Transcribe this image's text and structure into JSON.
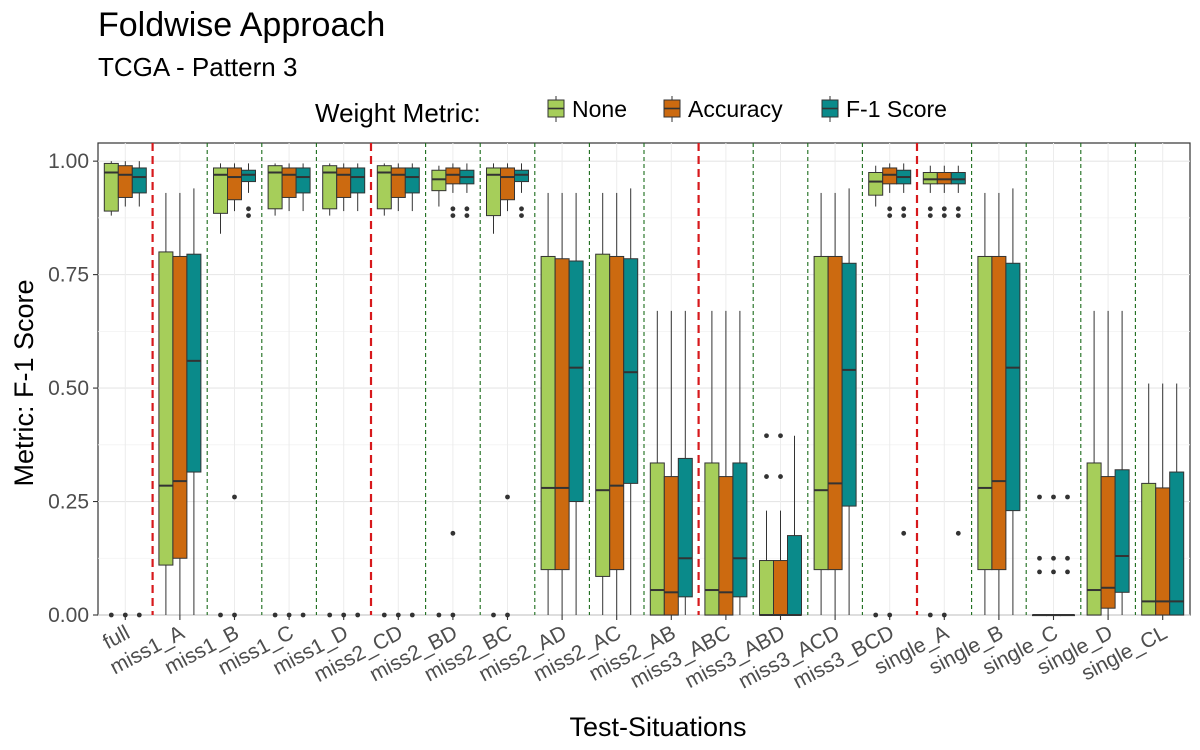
{
  "chart_data": {
    "type": "box",
    "title": "Foldwise Approach",
    "subtitle": "TCGA - Pattern 3",
    "xlabel": "Test-Situations",
    "ylabel": "Metric: F-1 Score",
    "ylim": [
      0,
      1.04
    ],
    "yticks": [
      "0.00",
      "0.25",
      "0.50",
      "0.75",
      "1.00"
    ],
    "ytick_values": [
      0,
      0.25,
      0.5,
      0.75,
      1.0
    ],
    "grid": true,
    "legend": {
      "title": "Weight Metric:",
      "position": "top",
      "entries": [
        "None",
        "Accuracy",
        "F-1 Score"
      ]
    },
    "series_colors": [
      "#a6ce5a",
      "#cc6a10",
      "#0a8a8a"
    ],
    "categories": [
      "full",
      "miss1_A",
      "miss1_B",
      "miss1_C",
      "miss1_D",
      "miss2_CD",
      "miss2_BD",
      "miss2_BC",
      "miss2_AD",
      "miss2_AC",
      "miss2_AB",
      "miss3_ABC",
      "miss3_ABD",
      "miss3_ACD",
      "miss3_BCD",
      "single_A",
      "single_B",
      "single_C",
      "single_D",
      "single_CL"
    ],
    "separators": [
      {
        "after": 0,
        "style": "red"
      },
      {
        "after": 1,
        "style": "green"
      },
      {
        "after": 2,
        "style": "green"
      },
      {
        "after": 3,
        "style": "green"
      },
      {
        "after": 4,
        "style": "red"
      },
      {
        "after": 5,
        "style": "green"
      },
      {
        "after": 6,
        "style": "green"
      },
      {
        "after": 7,
        "style": "green"
      },
      {
        "after": 8,
        "style": "green"
      },
      {
        "after": 9,
        "style": "green"
      },
      {
        "after": 10,
        "style": "red"
      },
      {
        "after": 11,
        "style": "green"
      },
      {
        "after": 12,
        "style": "green"
      },
      {
        "after": 13,
        "style": "green"
      },
      {
        "after": 14,
        "style": "red"
      },
      {
        "after": 15,
        "style": "green"
      },
      {
        "after": 16,
        "style": "green"
      },
      {
        "after": 17,
        "style": "green"
      },
      {
        "after": 18,
        "style": "green"
      }
    ],
    "boxes": [
      [
        {
          "lo": 0.88,
          "q1": 0.89,
          "med": 0.975,
          "q3": 0.995,
          "hi": 1.0,
          "out": [
            0.0
          ]
        },
        {
          "lo": 0.9,
          "q1": 0.92,
          "med": 0.97,
          "q3": 0.99,
          "hi": 1.0,
          "out": [
            0.0
          ]
        },
        {
          "lo": 0.9,
          "q1": 0.93,
          "med": 0.965,
          "q3": 0.985,
          "hi": 1.0,
          "out": [
            0.0
          ]
        }
      ],
      [
        {
          "lo": 0.0,
          "q1": 0.11,
          "med": 0.285,
          "q3": 0.8,
          "hi": 0.93,
          "out": []
        },
        {
          "lo": 0.0,
          "q1": 0.125,
          "med": 0.295,
          "q3": 0.79,
          "hi": 0.93,
          "out": []
        },
        {
          "lo": 0.0,
          "q1": 0.315,
          "med": 0.56,
          "q3": 0.795,
          "hi": 0.94,
          "out": []
        }
      ],
      [
        {
          "lo": 0.84,
          "q1": 0.885,
          "med": 0.97,
          "q3": 0.985,
          "hi": 0.995,
          "out": [
            0.0
          ]
        },
        {
          "lo": 0.89,
          "q1": 0.915,
          "med": 0.965,
          "q3": 0.985,
          "hi": 0.995,
          "out": [
            0.0,
            0.26
          ]
        },
        {
          "lo": 0.93,
          "q1": 0.955,
          "med": 0.97,
          "q3": 0.98,
          "hi": 0.995,
          "out": [
            0.88,
            0.895
          ]
        }
      ],
      [
        {
          "lo": 0.88,
          "q1": 0.895,
          "med": 0.975,
          "q3": 0.99,
          "hi": 0.995,
          "out": [
            0.0
          ]
        },
        {
          "lo": 0.89,
          "q1": 0.92,
          "med": 0.97,
          "q3": 0.985,
          "hi": 0.995,
          "out": [
            0.0
          ]
        },
        {
          "lo": 0.89,
          "q1": 0.93,
          "med": 0.965,
          "q3": 0.985,
          "hi": 0.995,
          "out": [
            0.0
          ]
        }
      ],
      [
        {
          "lo": 0.88,
          "q1": 0.895,
          "med": 0.975,
          "q3": 0.99,
          "hi": 0.995,
          "out": [
            0.0
          ]
        },
        {
          "lo": 0.89,
          "q1": 0.92,
          "med": 0.97,
          "q3": 0.985,
          "hi": 0.995,
          "out": [
            0.0
          ]
        },
        {
          "lo": 0.89,
          "q1": 0.93,
          "med": 0.965,
          "q3": 0.985,
          "hi": 0.995,
          "out": [
            0.0
          ]
        }
      ],
      [
        {
          "lo": 0.88,
          "q1": 0.895,
          "med": 0.975,
          "q3": 0.99,
          "hi": 0.995,
          "out": [
            0.0
          ]
        },
        {
          "lo": 0.89,
          "q1": 0.92,
          "med": 0.97,
          "q3": 0.985,
          "hi": 0.995,
          "out": [
            0.0
          ]
        },
        {
          "lo": 0.89,
          "q1": 0.93,
          "med": 0.965,
          "q3": 0.985,
          "hi": 0.995,
          "out": [
            0.0
          ]
        }
      ],
      [
        {
          "lo": 0.9,
          "q1": 0.935,
          "med": 0.96,
          "q3": 0.98,
          "hi": 0.99,
          "out": [
            0.0
          ]
        },
        {
          "lo": 0.93,
          "q1": 0.95,
          "med": 0.97,
          "q3": 0.985,
          "hi": 0.995,
          "out": [
            0.0,
            0.18,
            0.88,
            0.895
          ]
        },
        {
          "lo": 0.93,
          "q1": 0.95,
          "med": 0.965,
          "q3": 0.98,
          "hi": 0.995,
          "out": [
            0.88,
            0.895
          ]
        }
      ],
      [
        {
          "lo": 0.84,
          "q1": 0.88,
          "med": 0.97,
          "q3": 0.985,
          "hi": 0.995,
          "out": [
            0.0
          ]
        },
        {
          "lo": 0.89,
          "q1": 0.915,
          "med": 0.965,
          "q3": 0.985,
          "hi": 0.995,
          "out": [
            0.0,
            0.26
          ]
        },
        {
          "lo": 0.93,
          "q1": 0.955,
          "med": 0.97,
          "q3": 0.98,
          "hi": 0.995,
          "out": [
            0.88,
            0.895
          ]
        }
      ],
      [
        {
          "lo": 0.0,
          "q1": 0.1,
          "med": 0.28,
          "q3": 0.79,
          "hi": 0.93,
          "out": []
        },
        {
          "lo": 0.0,
          "q1": 0.1,
          "med": 0.28,
          "q3": 0.785,
          "hi": 0.93,
          "out": []
        },
        {
          "lo": 0.0,
          "q1": 0.25,
          "med": 0.545,
          "q3": 0.78,
          "hi": 0.93,
          "out": []
        }
      ],
      [
        {
          "lo": 0.0,
          "q1": 0.085,
          "med": 0.275,
          "q3": 0.795,
          "hi": 0.93,
          "out": []
        },
        {
          "lo": 0.0,
          "q1": 0.1,
          "med": 0.285,
          "q3": 0.79,
          "hi": 0.93,
          "out": []
        },
        {
          "lo": 0.0,
          "q1": 0.29,
          "med": 0.535,
          "q3": 0.785,
          "hi": 0.94,
          "out": []
        }
      ],
      [
        {
          "lo": 0.0,
          "q1": 0.0,
          "med": 0.055,
          "q3": 0.335,
          "hi": 0.67,
          "out": []
        },
        {
          "lo": 0.0,
          "q1": 0.0,
          "med": 0.05,
          "q3": 0.305,
          "hi": 0.67,
          "out": []
        },
        {
          "lo": 0.0,
          "q1": 0.04,
          "med": 0.125,
          "q3": 0.345,
          "hi": 0.67,
          "out": []
        }
      ],
      [
        {
          "lo": 0.0,
          "q1": 0.0,
          "med": 0.055,
          "q3": 0.335,
          "hi": 0.67,
          "out": []
        },
        {
          "lo": 0.0,
          "q1": 0.0,
          "med": 0.05,
          "q3": 0.305,
          "hi": 0.67,
          "out": []
        },
        {
          "lo": 0.0,
          "q1": 0.04,
          "med": 0.125,
          "q3": 0.335,
          "hi": 0.67,
          "out": []
        }
      ],
      [
        {
          "lo": 0.0,
          "q1": 0.0,
          "med": 0.0,
          "q3": 0.12,
          "hi": 0.23,
          "out": [
            0.305,
            0.395
          ]
        },
        {
          "lo": 0.0,
          "q1": 0.0,
          "med": 0.0,
          "q3": 0.12,
          "hi": 0.23,
          "out": [
            0.305,
            0.395
          ]
        },
        {
          "lo": 0.0,
          "q1": 0.0,
          "med": 0.0,
          "q3": 0.175,
          "hi": 0.395,
          "out": []
        }
      ],
      [
        {
          "lo": 0.0,
          "q1": 0.1,
          "med": 0.275,
          "q3": 0.79,
          "hi": 0.93,
          "out": []
        },
        {
          "lo": 0.0,
          "q1": 0.1,
          "med": 0.29,
          "q3": 0.79,
          "hi": 0.93,
          "out": []
        },
        {
          "lo": 0.0,
          "q1": 0.24,
          "med": 0.54,
          "q3": 0.775,
          "hi": 0.94,
          "out": []
        }
      ],
      [
        {
          "lo": 0.9,
          "q1": 0.925,
          "med": 0.955,
          "q3": 0.975,
          "hi": 0.99,
          "out": [
            0.0
          ]
        },
        {
          "lo": 0.93,
          "q1": 0.95,
          "med": 0.97,
          "q3": 0.985,
          "hi": 0.995,
          "out": [
            0.0,
            0.88,
            0.895
          ]
        },
        {
          "lo": 0.93,
          "q1": 0.95,
          "med": 0.965,
          "q3": 0.98,
          "hi": 0.995,
          "out": [
            0.18,
            0.88,
            0.895
          ]
        }
      ],
      [
        {
          "lo": 0.93,
          "q1": 0.95,
          "med": 0.96,
          "q3": 0.975,
          "hi": 0.99,
          "out": [
            0.0,
            0.88,
            0.895
          ]
        },
        {
          "lo": 0.93,
          "q1": 0.95,
          "med": 0.96,
          "q3": 0.975,
          "hi": 0.99,
          "out": [
            0.0,
            0.88,
            0.895
          ]
        },
        {
          "lo": 0.93,
          "q1": 0.95,
          "med": 0.96,
          "q3": 0.975,
          "hi": 0.99,
          "out": [
            0.18,
            0.88,
            0.895
          ]
        }
      ],
      [
        {
          "lo": 0.0,
          "q1": 0.1,
          "med": 0.28,
          "q3": 0.79,
          "hi": 0.93,
          "out": []
        },
        {
          "lo": 0.0,
          "q1": 0.1,
          "med": 0.295,
          "q3": 0.79,
          "hi": 0.93,
          "out": []
        },
        {
          "lo": 0.0,
          "q1": 0.23,
          "med": 0.545,
          "q3": 0.775,
          "hi": 0.94,
          "out": []
        }
      ],
      [
        {
          "lo": 0.0,
          "q1": 0.0,
          "med": 0.0,
          "q3": 0.0,
          "hi": 0.0,
          "out": [
            0.095,
            0.125,
            0.26
          ]
        },
        {
          "lo": 0.0,
          "q1": 0.0,
          "med": 0.0,
          "q3": 0.0,
          "hi": 0.0,
          "out": [
            0.095,
            0.125,
            0.26
          ]
        },
        {
          "lo": 0.0,
          "q1": 0.0,
          "med": 0.0,
          "q3": 0.0,
          "hi": 0.0,
          "out": [
            0.095,
            0.125,
            0.26
          ]
        }
      ],
      [
        {
          "lo": 0.0,
          "q1": 0.0,
          "med": 0.055,
          "q3": 0.335,
          "hi": 0.67,
          "out": []
        },
        {
          "lo": 0.0,
          "q1": 0.015,
          "med": 0.06,
          "q3": 0.305,
          "hi": 0.67,
          "out": []
        },
        {
          "lo": 0.0,
          "q1": 0.05,
          "med": 0.13,
          "q3": 0.32,
          "hi": 0.67,
          "out": []
        }
      ],
      [
        {
          "lo": 0.0,
          "q1": 0.0,
          "med": 0.03,
          "q3": 0.29,
          "hi": 0.51,
          "out": []
        },
        {
          "lo": 0.0,
          "q1": 0.0,
          "med": 0.03,
          "q3": 0.28,
          "hi": 0.51,
          "out": []
        },
        {
          "lo": 0.0,
          "q1": 0.0,
          "med": 0.03,
          "q3": 0.315,
          "hi": 0.51,
          "out": []
        }
      ]
    ]
  }
}
